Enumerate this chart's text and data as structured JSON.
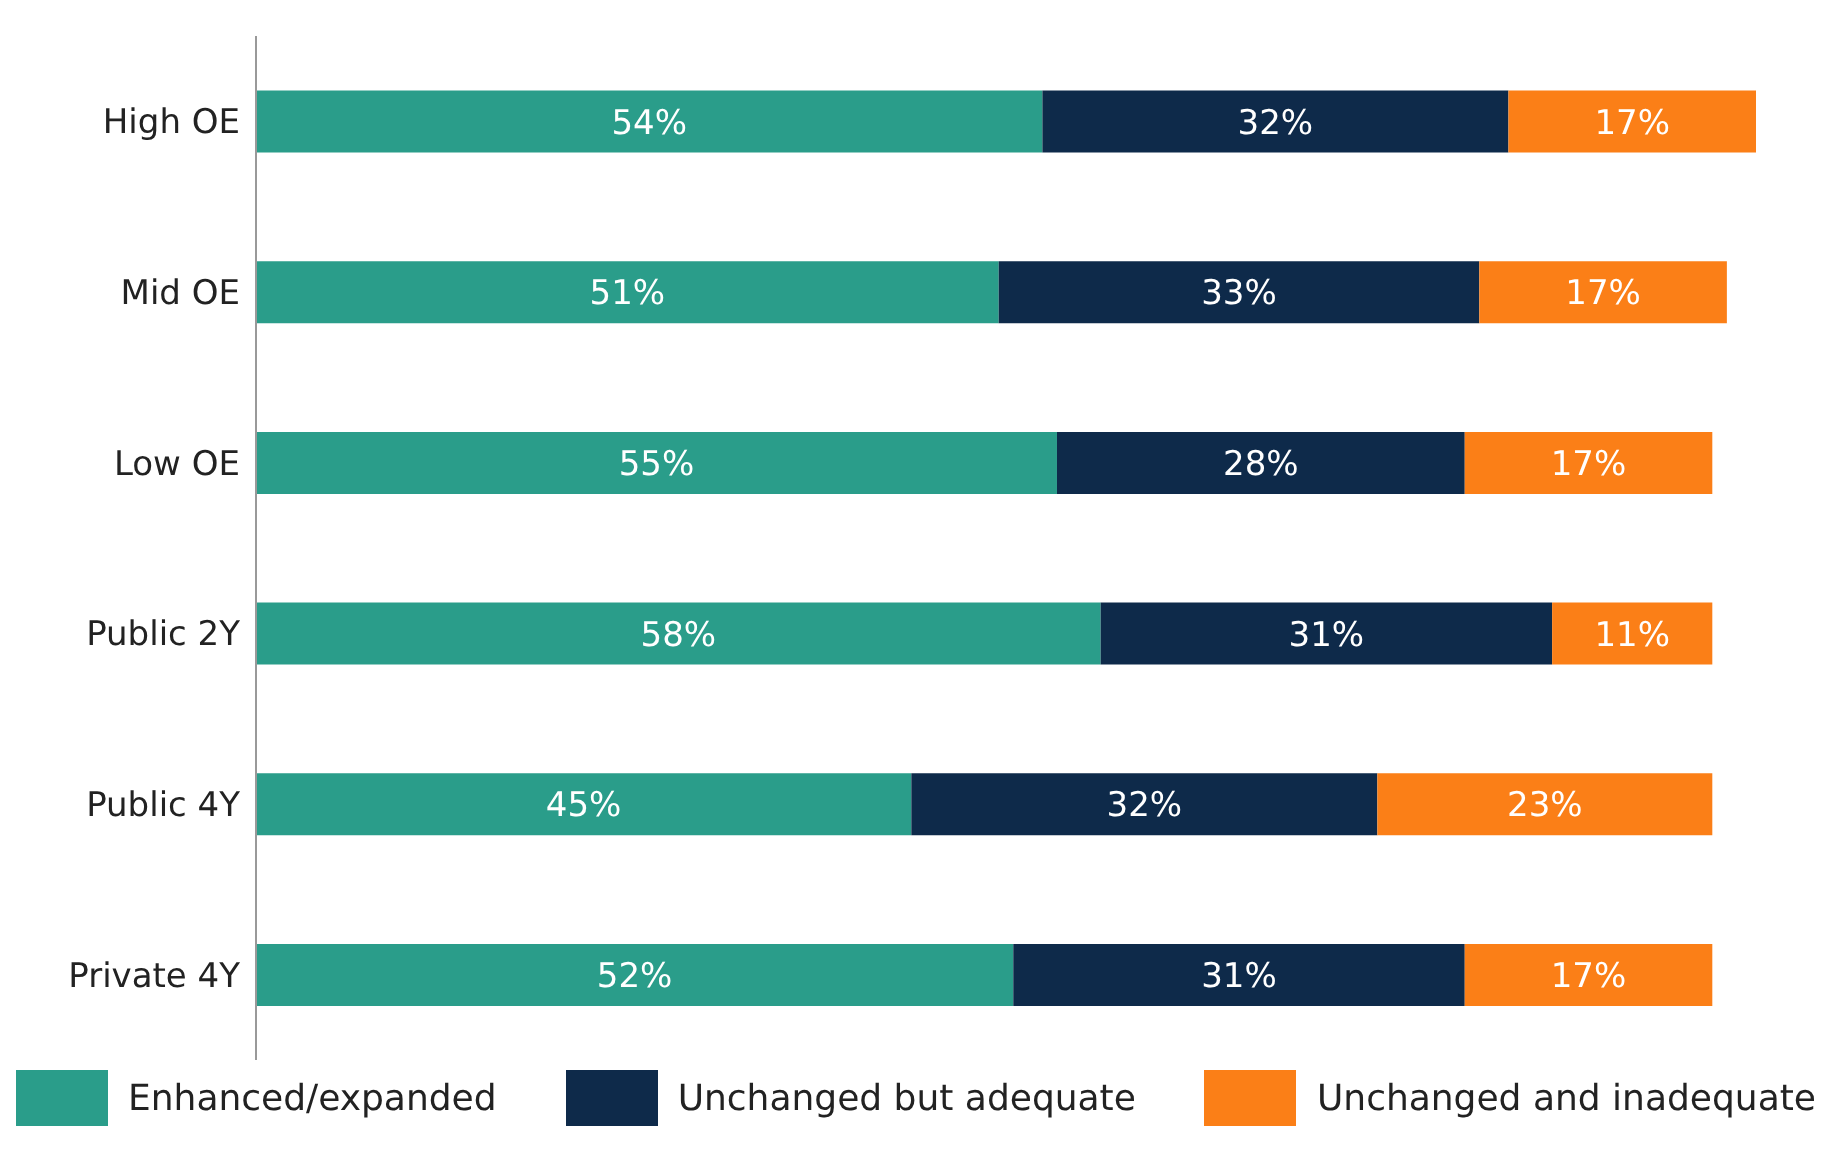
{
  "chart_data": {
    "type": "bar",
    "orientation": "horizontal",
    "stacked": true,
    "categories": [
      "High OE",
      "Mid OE",
      "Low OE",
      "Public 2Y",
      "Public 4Y",
      "Private 4Y"
    ],
    "series": [
      {
        "name": "Enhanced/expanded",
        "color": "#2a9d8a",
        "values": [
          54,
          51,
          55,
          58,
          45,
          52
        ],
        "value_labels": [
          "54%",
          "51%",
          "55%",
          "58%",
          "45%",
          "52%"
        ]
      },
      {
        "name": "Unchanged but adequate",
        "color": "#0e2a4a",
        "values": [
          32,
          33,
          28,
          31,
          32,
          31
        ],
        "value_labels": [
          "32%",
          "33%",
          "28%",
          "31%",
          "32%",
          "31%"
        ]
      },
      {
        "name": "Unchanged and inadequate",
        "color": "#fb7f17",
        "values": [
          17,
          17,
          17,
          11,
          23,
          17
        ],
        "value_labels": [
          "17%",
          "17%",
          "17%",
          "11%",
          "23%",
          "17%"
        ]
      }
    ],
    "legend": "bottom",
    "tick_labels": "y"
  }
}
